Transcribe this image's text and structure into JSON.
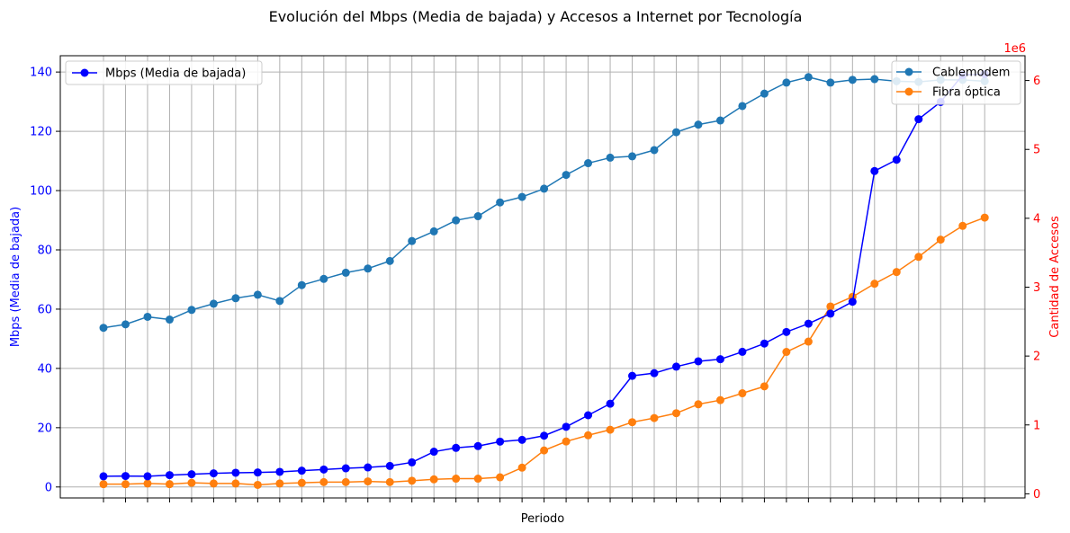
{
  "chart_data": {
    "type": "line",
    "title": "Evolución del Mbps (Media de bajada) y Accesos a Internet por Tecnología",
    "xlabel": "Periodo",
    "ylabel_left": "Mbps (Media de bajada)",
    "ylabel_right": "Cantidad de Accesos",
    "right_axis_multiplier": "1e6",
    "ylim_left": [
      -3.7,
      145.5
    ],
    "ylim_right": [
      -0.06,
      6.36
    ],
    "yticks_left": [
      "0",
      "20",
      "40",
      "60",
      "80",
      "100",
      "120",
      "140"
    ],
    "yticks_right": [
      "0",
      "1",
      "2",
      "3",
      "4",
      "5",
      "6"
    ],
    "grid": true,
    "legend_left_position": "upper-left",
    "legend_right_position": "upper-right",
    "colors": {
      "mbps": "#0000ff",
      "cablemodem": "#1f77b4",
      "fibra": "#ff7f0e",
      "left_axis": "#0000ff",
      "right_axis": "#ff0000",
      "grid": "#b0b0b0"
    },
    "left_series": [
      {
        "name": "Mbps (Media de bajada)",
        "values": [
          3.6,
          3.7,
          3.6,
          4.0,
          4.3,
          4.6,
          4.8,
          4.9,
          5.1,
          5.5,
          5.9,
          6.3,
          6.6,
          7.1,
          8.3,
          11.9,
          13.2,
          13.8,
          15.3,
          15.9,
          17.3,
          20.3,
          24.2,
          28.1,
          37.5,
          38.4,
          40.6,
          42.4,
          43.1,
          45.6,
          48.4,
          52.3,
          55.1,
          58.5,
          62.5,
          106.6,
          110.4,
          124.1,
          129.9,
          139.0,
          139.3
        ]
      }
    ],
    "right_series": [
      {
        "name": "Cablemodem",
        "values": [
          2.41,
          2.46,
          2.57,
          2.53,
          2.67,
          2.76,
          2.84,
          2.89,
          2.8,
          3.03,
          3.12,
          3.21,
          3.27,
          3.38,
          3.67,
          3.81,
          3.97,
          4.03,
          4.23,
          4.31,
          4.43,
          4.63,
          4.8,
          4.88,
          4.9,
          4.99,
          5.25,
          5.36,
          5.42,
          5.63,
          5.81,
          5.97,
          6.05,
          5.97,
          6.01,
          6.02,
          5.99,
          5.98,
          6.01,
          6.01,
          5.99
        ]
      },
      {
        "name": "Fibra óptica",
        "values": [
          0.14,
          0.14,
          0.15,
          0.14,
          0.16,
          0.15,
          0.15,
          0.13,
          0.15,
          0.16,
          0.17,
          0.17,
          0.18,
          0.17,
          0.19,
          0.21,
          0.22,
          0.22,
          0.24,
          0.38,
          0.63,
          0.76,
          0.85,
          0.93,
          1.04,
          1.1,
          1.17,
          1.3,
          1.36,
          1.46,
          1.56,
          2.06,
          2.21,
          2.72,
          2.86,
          3.05,
          3.22,
          3.44,
          3.69,
          3.89,
          4.01
        ]
      }
    ],
    "n_periods": 41
  }
}
